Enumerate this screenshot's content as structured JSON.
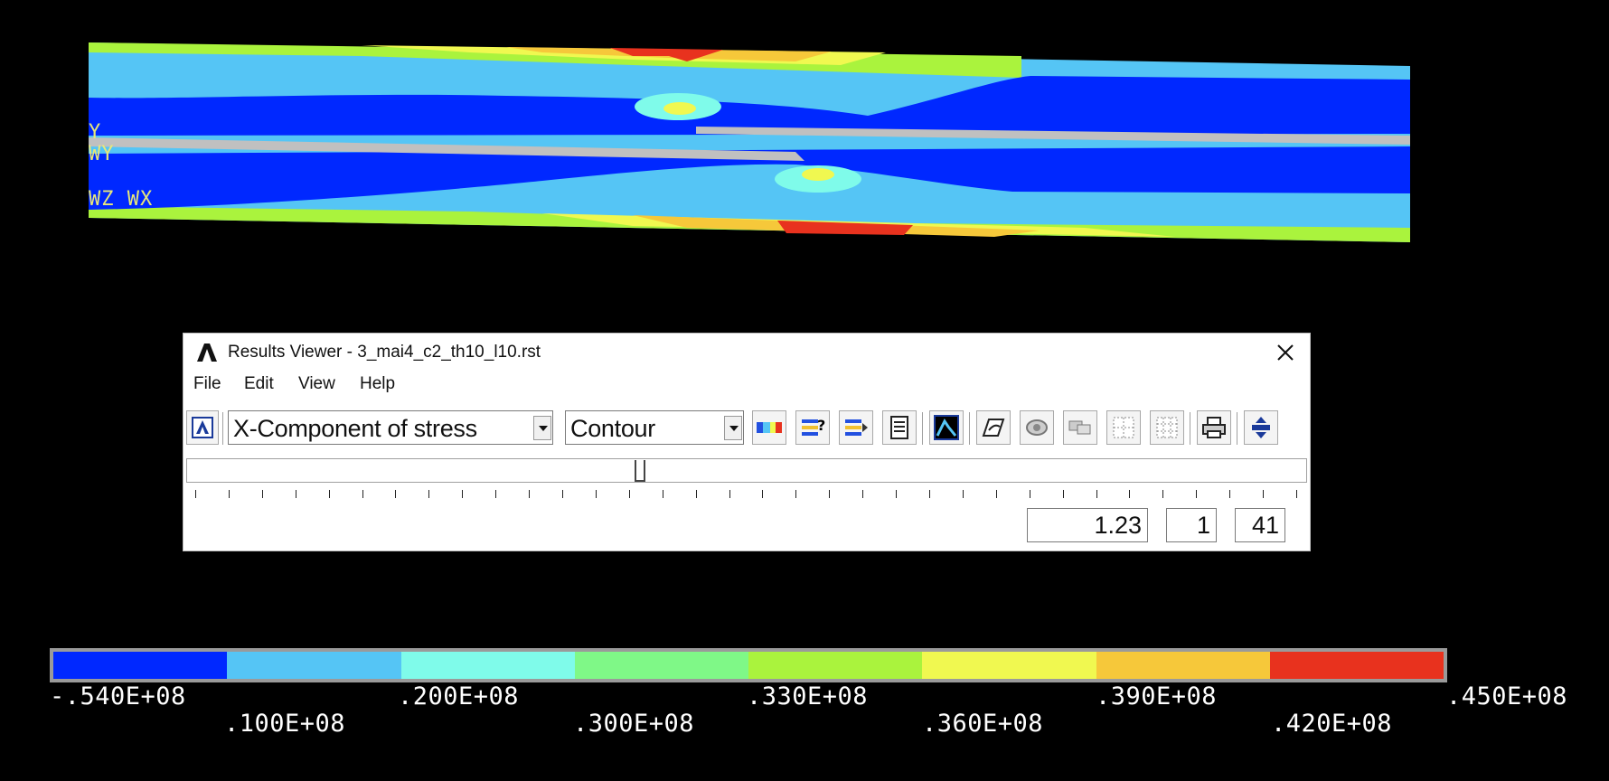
{
  "plot": {
    "colors": {
      "blue": "#0028ff",
      "light_blue": "#55c5f5",
      "cyan": "#7ffbea",
      "green": "#7ff887",
      "lime": "#aaf33d",
      "yellow": "#f0f850",
      "orange": "#f6c83a",
      "red": "#e8321e",
      "gray": "#c0c0c0"
    },
    "axis_labels": {
      "y": "Y",
      "wy": "WY",
      "wz_wx": "WZ WX"
    }
  },
  "window": {
    "title": "Results Viewer -  3_mai4_c2_th10_l10.rst",
    "close_icon": "close-icon",
    "menu": [
      "File",
      "Edit",
      "View",
      "Help"
    ],
    "result_item": "X-Component of stress",
    "display_type": "Contour",
    "toolbar_icons": [
      "load-file-icon",
      "contour-style-icon",
      "query-icon",
      "list-icon",
      "text-list-icon",
      "plot-window-icon",
      "rotate-icon",
      "capture-icon",
      "animate-icon",
      "grid-icon",
      "grid-dense-icon",
      "print-icon",
      "expand-icon"
    ],
    "slider_fraction": 0.4,
    "time_value": "1.23",
    "substep_value": "1",
    "set_value": "41"
  },
  "legend": {
    "colors": [
      "#0028ff",
      "#55c5f5",
      "#7ffbea",
      "#7ff887",
      "#aaf33d",
      "#f0f850",
      "#f6c83a",
      "#e8321e"
    ],
    "labels_top": [
      "-.540E+08",
      ".200E+08",
      ".330E+08",
      ".390E+08",
      ".450E+08"
    ],
    "labels_bottom": [
      ".100E+08",
      ".300E+08",
      ".360E+08",
      ".420E+08"
    ]
  }
}
